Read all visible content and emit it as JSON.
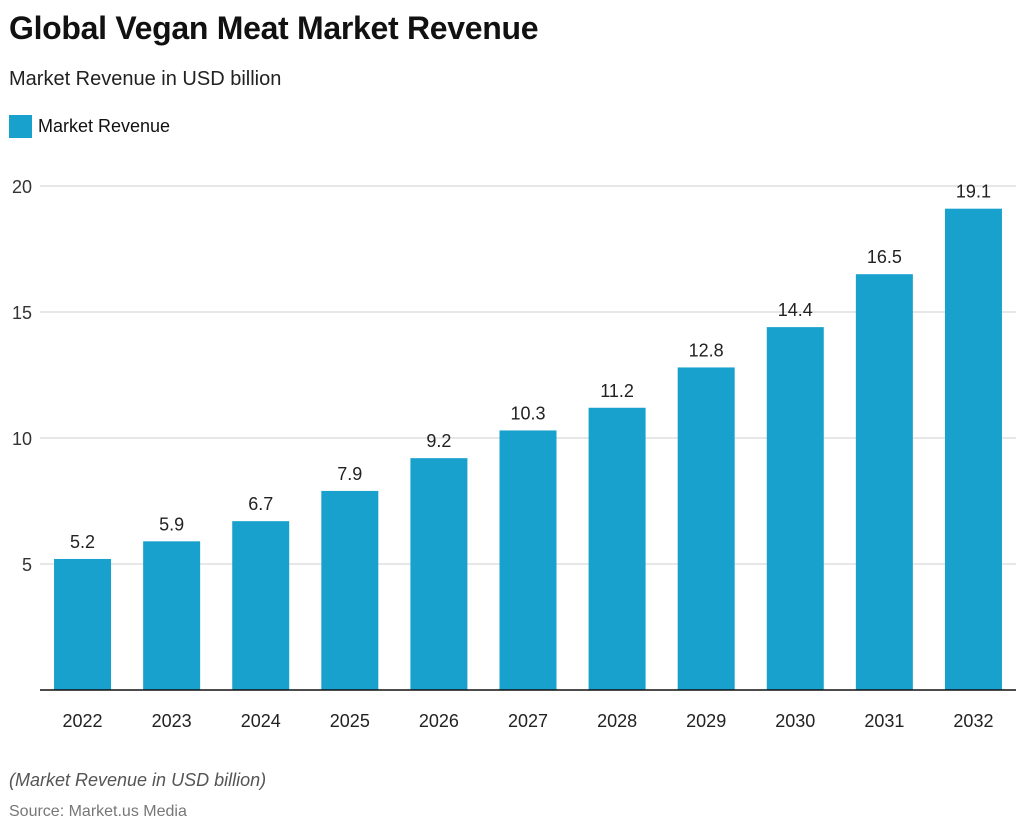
{
  "chart_data": {
    "type": "bar",
    "title": "Global Vegan Meat Market Revenue",
    "subtitle": "Market Revenue in USD billion",
    "categories": [
      "2022",
      "2023",
      "2024",
      "2025",
      "2026",
      "2027",
      "2028",
      "2029",
      "2030",
      "2031",
      "2032"
    ],
    "series": [
      {
        "name": "Market Revenue",
        "values": [
          5.2,
          5.9,
          6.7,
          7.9,
          9.2,
          10.3,
          11.2,
          12.8,
          14.4,
          16.5,
          19.1
        ]
      }
    ],
    "ylim": [
      0,
      20
    ],
    "yticks": [
      5,
      10,
      15,
      20
    ],
    "grid": true,
    "legend": "top-left",
    "color": "#19a1cd",
    "note": "(Market Revenue in USD billion)",
    "source": "Source: Market.us Media"
  }
}
